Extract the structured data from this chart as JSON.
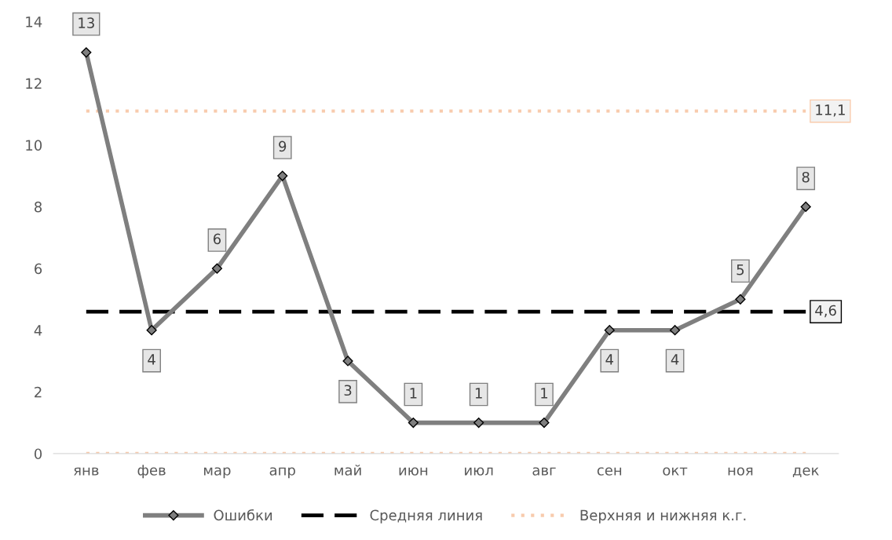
{
  "chart_data": {
    "type": "line",
    "categories": [
      "янв",
      "фев",
      "мар",
      "апр",
      "май",
      "июн",
      "июл",
      "авг",
      "сен",
      "окт",
      "ноя",
      "дек"
    ],
    "series": [
      {
        "name": "Ошибки",
        "color": "#7f7f7f",
        "marker": "diamond",
        "line_style": "solid",
        "values": [
          13,
          4,
          6,
          9,
          3,
          1,
          1,
          1,
          4,
          4,
          5,
          8
        ],
        "value_labels": [
          "13",
          "4",
          "6",
          "9",
          "3",
          "1",
          "1",
          "1",
          "4",
          "4",
          "5",
          "8"
        ]
      },
      {
        "name": "Средняя линия",
        "color": "#000000",
        "marker": "none",
        "line_style": "dashed",
        "values": [
          4.6,
          4.6,
          4.6,
          4.6,
          4.6,
          4.6,
          4.6,
          4.6,
          4.6,
          4.6,
          4.6,
          4.6
        ],
        "value_labels": [
          null,
          null,
          null,
          null,
          null,
          null,
          null,
          null,
          null,
          null,
          null,
          "4,6"
        ]
      },
      {
        "name": "Верхняя и нижняя к.г.",
        "color": "#f8cbad",
        "marker": "none",
        "line_style": "dotted",
        "values": [
          11.1,
          11.1,
          11.1,
          11.1,
          11.1,
          11.1,
          11.1,
          11.1,
          11.1,
          11.1,
          11.1,
          11.1
        ],
        "value_labels": [
          null,
          null,
          null,
          null,
          null,
          null,
          null,
          null,
          null,
          null,
          null,
          "11,1"
        ]
      },
      {
        "color": "#f8cbad",
        "marker": "none",
        "line_style": "dotted",
        "values": [
          0,
          0,
          0,
          0,
          0,
          0,
          0,
          0,
          0,
          0,
          0,
          0
        ]
      }
    ],
    "ylim": [
      0,
      14
    ],
    "yticks": [
      0,
      2,
      4,
      6,
      8,
      10,
      12,
      14
    ],
    "grid": false,
    "legend": "bottom"
  }
}
